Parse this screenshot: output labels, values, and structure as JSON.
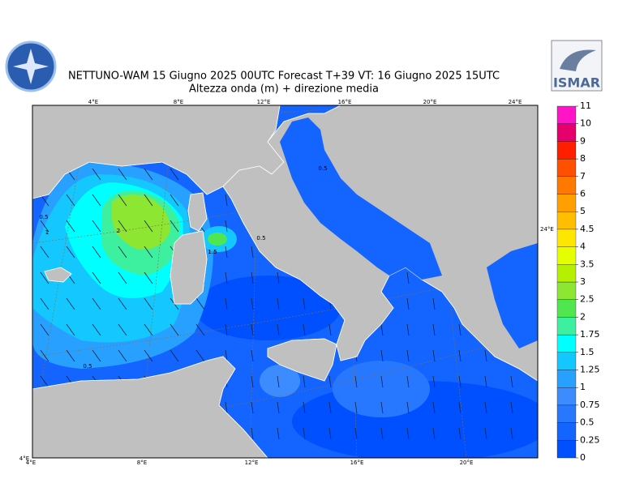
{
  "header": {
    "title": "NETTUNO-WAM  15   Giugno  2025 00UTC Forecast T+39 VT: 16   Giugno  2025 15UTC",
    "subtitle": "Altezza onda (m) + direzione media",
    "logo": "ISMAR"
  },
  "map": {
    "top_lon_labels": [
      "4°E",
      "8°E",
      "12°E",
      "16°E",
      "20°E",
      "24°E"
    ],
    "bottom_lon_labels": [
      "4°E",
      "8°E",
      "12°E",
      "16°E",
      "20°E"
    ],
    "right_lon_label": "24°E",
    "corner_label": "4°E",
    "contour_labels": [
      0.5,
      1,
      2,
      1.5,
      0.5,
      0.5,
      0.5
    ]
  },
  "colorbar": {
    "levels": [
      0,
      0.25,
      0.5,
      0.75,
      1,
      1.25,
      1.5,
      1.75,
      2,
      2.5,
      3,
      3.5,
      4,
      4.5,
      5,
      6,
      7,
      8,
      9,
      10,
      11
    ],
    "colors": [
      "#0050ff",
      "#1464ff",
      "#2878ff",
      "#3c8cff",
      "#28a0ff",
      "#14c8ff",
      "#00ffff",
      "#3cf0a0",
      "#50e650",
      "#8ce632",
      "#b4f000",
      "#e6ff00",
      "#ffe600",
      "#ffbe00",
      "#ffa000",
      "#ff7800",
      "#ff5000",
      "#ff1e00",
      "#e6006e",
      "#ff14c8"
    ]
  }
}
